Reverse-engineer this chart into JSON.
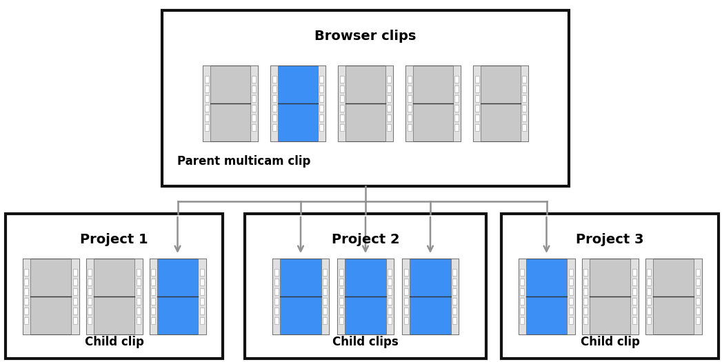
{
  "bg_color": "#ffffff",
  "film_gray": "#c8c8c8",
  "film_blue": "#3b8ff5",
  "film_strip_color": "#e0e0e0",
  "box_border": "#111111",
  "arrow_color": "#909090",
  "title_browser": "Browser clips",
  "label_parent": "Parent multicam clip",
  "projects": [
    "Project 1",
    "Project 2",
    "Project 3"
  ],
  "child_labels": [
    "Child clip",
    "Child clips",
    "Child clip"
  ],
  "browser_clips_blue_index": 1,
  "proj1_blue_indices": [
    2
  ],
  "proj2_blue_indices": [
    0,
    1,
    2
  ],
  "proj3_blue_indices": [
    0
  ],
  "fig_w": 10.47,
  "fig_h": 5.25,
  "dpi": 100
}
